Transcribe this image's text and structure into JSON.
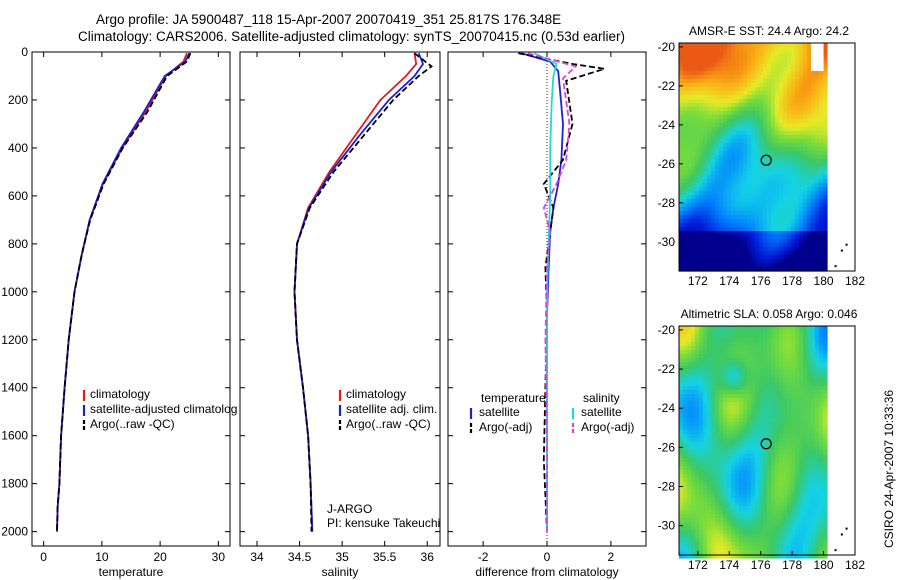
{
  "header": {
    "line1": "Argo profile: JA 5900487_118 15-Apr-2007 20070419_351 25.817S 176.348E",
    "line2": "Climatology: CARS2006. Satellite-adjusted climatology: synTS_20070415.nc (0.53d earlier)"
  },
  "side_caption": "CSIRO 24-Apr-2007 10:33:36",
  "colors": {
    "climatology": "#e41a1c",
    "satellite": "#1f1fd6",
    "argo": "#000000",
    "sal_satellite": "#22d8d8",
    "sal_argo": "#e040e0"
  },
  "chart_data": [
    {
      "id": "temperature",
      "type": "line",
      "xlabel": "temperature",
      "xlim": [
        -2,
        32
      ],
      "ylim": [
        2060,
        0
      ],
      "xticks": [
        0,
        10,
        20,
        30
      ],
      "yticks": [
        0,
        200,
        400,
        600,
        800,
        1000,
        1200,
        1400,
        1600,
        1800,
        2000
      ],
      "legend": {
        "placement": "lower-right",
        "entries": [
          "climatology",
          "satellite-adjusted climatolog",
          "Argo(..raw -QC)"
        ]
      },
      "series": [
        {
          "name": "climatology",
          "color": "#e41a1c",
          "dash": "",
          "x": [
            24.6,
            24.0,
            21.0,
            17.5,
            13.5,
            10.2,
            7.9,
            6.5,
            5.3,
            4.3,
            3.6,
            3.0,
            2.7,
            2.4,
            2.3
          ],
          "y": [
            5,
            40,
            100,
            250,
            400,
            550,
            700,
            850,
            1000,
            1200,
            1400,
            1600,
            1800,
            1900,
            2000
          ]
        },
        {
          "name": "satellite-adjusted climatolog",
          "color": "#1f1fd6",
          "dash": "",
          "x": [
            25.0,
            24.3,
            20.8,
            17.2,
            13.3,
            10.1,
            7.9,
            6.5,
            5.3,
            4.3,
            3.6,
            3.0,
            2.7,
            2.4,
            2.3
          ],
          "y": [
            5,
            40,
            100,
            250,
            400,
            550,
            700,
            850,
            1000,
            1200,
            1400,
            1600,
            1800,
            1900,
            2000
          ]
        },
        {
          "name": "Argo(..raw -QC)",
          "color": "#000000",
          "dash": "6,3",
          "x": [
            25.2,
            24.6,
            21.2,
            17.8,
            13.6,
            10.3,
            8.0,
            6.5,
            5.3,
            4.3,
            3.6,
            3.0,
            2.7,
            2.4,
            2.3
          ],
          "y": [
            5,
            40,
            100,
            250,
            400,
            550,
            700,
            850,
            1000,
            1200,
            1400,
            1600,
            1800,
            1900,
            2000
          ]
        }
      ]
    },
    {
      "id": "salinity",
      "type": "line",
      "xlabel": "salinity",
      "xlim": [
        33.8,
        36.15
      ],
      "ylim": [
        2060,
        0
      ],
      "xticks": [
        34,
        34.5,
        35,
        35.5,
        36
      ],
      "legend": {
        "placement": "lower-right",
        "entries": [
          "climatology",
          "satellite adj. clim.",
          "Argo(..raw -QC)"
        ]
      },
      "annotation": [
        "J-ARGO",
        "PI: kensuke Takeuchi"
      ],
      "series": [
        {
          "name": "climatology",
          "color": "#e41a1c",
          "dash": "",
          "x": [
            35.85,
            35.87,
            35.75,
            35.45,
            35.15,
            34.85,
            34.6,
            34.47,
            34.44,
            34.47,
            34.54,
            34.6,
            34.63,
            34.65
          ],
          "y": [
            5,
            50,
            100,
            200,
            350,
            500,
            650,
            800,
            1000,
            1200,
            1400,
            1600,
            1800,
            2000
          ]
        },
        {
          "name": "satellite adj. clim.",
          "color": "#1f1fd6",
          "dash": "",
          "x": [
            35.9,
            35.95,
            35.85,
            35.55,
            35.2,
            34.87,
            34.61,
            34.47,
            34.44,
            34.47,
            34.54,
            34.6,
            34.63,
            34.65
          ],
          "y": [
            5,
            50,
            100,
            200,
            350,
            500,
            650,
            800,
            1000,
            1200,
            1400,
            1600,
            1800,
            2000
          ]
        },
        {
          "name": "Argo(..raw -QC)",
          "color": "#000000",
          "dash": "6,3",
          "x": [
            35.85,
            36.05,
            35.9,
            35.6,
            35.25,
            34.9,
            34.62,
            34.47,
            34.44,
            34.47,
            34.54,
            34.6,
            34.63,
            34.64
          ],
          "y": [
            5,
            60,
            100,
            200,
            350,
            500,
            650,
            800,
            1000,
            1200,
            1400,
            1600,
            1800,
            2000
          ]
        }
      ]
    },
    {
      "id": "difference",
      "type": "line",
      "xlabel": "difference from climatology",
      "xlim": [
        -3.1,
        3.1
      ],
      "ylim": [
        2060,
        0
      ],
      "xticks": [
        -2,
        0,
        2
      ],
      "legend": {
        "placement": "lower-center",
        "columns": [
          {
            "header": "temperature",
            "entries": [
              "satellite",
              "Argo(-adj)"
            ]
          },
          {
            "header": "salinity",
            "entries": [
              "satellite",
              "Argo(-adj)"
            ]
          }
        ]
      },
      "series": [
        {
          "name": "temperature satellite",
          "color": "#1f1fd6",
          "dash": "",
          "x": [
            -0.8,
            0.1,
            0.35,
            0.4,
            0.5,
            0.45,
            0.35,
            0.2,
            0.1,
            0.05,
            0.0,
            0.0,
            0.0,
            0.0
          ],
          "y": [
            5,
            40,
            80,
            150,
            300,
            450,
            550,
            650,
            750,
            900,
            1100,
            1400,
            1700,
            2000
          ]
        },
        {
          "name": "temperature Argo(-adj)",
          "color": "#000000",
          "dash": "6,3",
          "x": [
            -0.9,
            0.8,
            1.8,
            0.6,
            0.8,
            0.5,
            -0.1,
            0.2,
            0.1,
            -0.05,
            0.0,
            -0.05,
            -0.1,
            0.0
          ],
          "y": [
            5,
            50,
            70,
            120,
            300,
            450,
            550,
            650,
            750,
            900,
            1100,
            1400,
            1700,
            2000
          ]
        },
        {
          "name": "salinity satellite",
          "color": "#22d8d8",
          "dash": "",
          "x": [
            -0.4,
            0.3,
            0.2,
            0.15,
            0.1,
            0.1,
            0.05,
            0.0,
            0.0,
            0.0,
            0.0,
            0.0
          ],
          "y": [
            5,
            50,
            100,
            200,
            400,
            600,
            800,
            1000,
            1200,
            1500,
            1800,
            2000
          ]
        },
        {
          "name": "salinity Argo(-adj)",
          "color": "#e040e0",
          "dash": "6,3",
          "x": [
            -0.6,
            0.9,
            0.5,
            0.7,
            0.6,
            0.3,
            -0.1,
            0.1,
            0.0,
            -0.05,
            0.0,
            0.0
          ],
          "y": [
            5,
            60,
            110,
            300,
            450,
            550,
            650,
            750,
            900,
            1200,
            1600,
            2000
          ]
        }
      ]
    },
    {
      "id": "sst-map",
      "type": "heatmap",
      "title": "AMSR-E SST: 24.4 Argo: 24.2",
      "xlim": [
        170.8,
        182
      ],
      "ylim": [
        -31.5,
        -19.8
      ],
      "xticks": [
        172,
        174,
        176,
        178,
        180,
        182
      ],
      "yticks": [
        -20,
        -22,
        -24,
        -26,
        -28,
        -30
      ],
      "marker": {
        "lon": 176.348,
        "lat": -25.817
      }
    },
    {
      "id": "sla-map",
      "type": "heatmap",
      "title": "Altimetric SLA: 0.058 Argo: 0.046",
      "xlim": [
        170.8,
        182
      ],
      "ylim": [
        -31.5,
        -19.8
      ],
      "xticks": [
        172,
        174,
        176,
        178,
        180,
        182
      ],
      "yticks": [
        -20,
        -22,
        -24,
        -26,
        -28,
        -30
      ],
      "marker": {
        "lon": 176.348,
        "lat": -25.817
      }
    }
  ]
}
